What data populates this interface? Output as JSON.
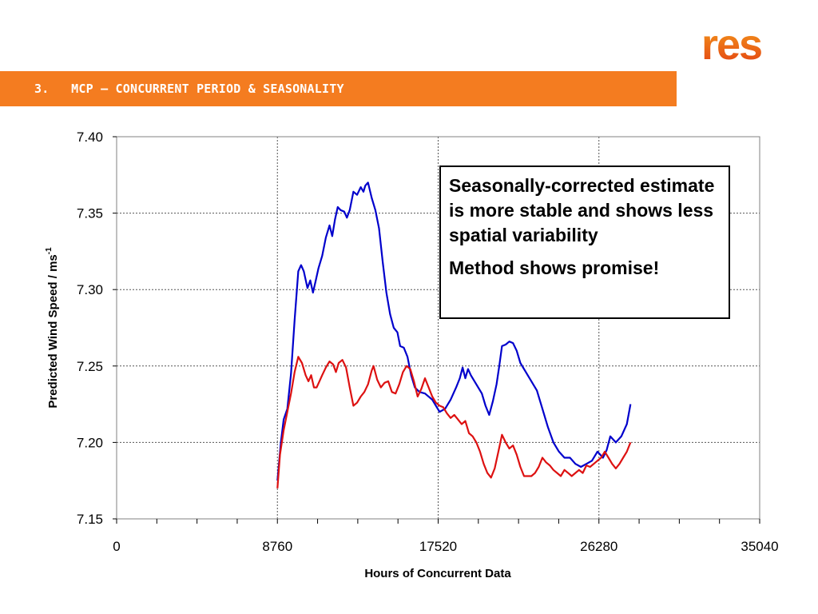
{
  "header": {
    "title": "3.   MCP – CONCURRENT PERIOD & SEASONALITY",
    "brand_color": "#f47c20"
  },
  "logo": {
    "text": "res"
  },
  "callout": {
    "line1": "Seasonally-corrected estimate is more stable and shows less spatial variability",
    "line2": "Method shows promise!"
  },
  "chart_data": {
    "type": "line",
    "xlabel": "Hours of Concurrent Data",
    "ylabel_main": "Predicted Wind Speed / ms",
    "ylabel_sup": "-1",
    "xlim": [
      0,
      35040
    ],
    "ylim": [
      7.15,
      7.4
    ],
    "x_ticks": [
      "0",
      "8760",
      "17520",
      "26280",
      "35040"
    ],
    "y_ticks": [
      "7.15",
      "7.20",
      "7.25",
      "7.30",
      "7.35",
      "7.40"
    ],
    "grid": "dotted",
    "series": [
      {
        "color": "#0000cc",
        "points": [
          [
            8760,
            7.175
          ],
          [
            8950,
            7.2
          ],
          [
            9100,
            7.215
          ],
          [
            9300,
            7.222
          ],
          [
            9500,
            7.245
          ],
          [
            9700,
            7.28
          ],
          [
            9900,
            7.312
          ],
          [
            10050,
            7.316
          ],
          [
            10200,
            7.312
          ],
          [
            10400,
            7.301
          ],
          [
            10550,
            7.306
          ],
          [
            10700,
            7.298
          ],
          [
            10850,
            7.306
          ],
          [
            11000,
            7.314
          ],
          [
            11200,
            7.322
          ],
          [
            11400,
            7.334
          ],
          [
            11600,
            7.342
          ],
          [
            11750,
            7.335
          ],
          [
            11900,
            7.346
          ],
          [
            12050,
            7.354
          ],
          [
            12200,
            7.352
          ],
          [
            12400,
            7.351
          ],
          [
            12550,
            7.347
          ],
          [
            12700,
            7.352
          ],
          [
            12900,
            7.364
          ],
          [
            13100,
            7.362
          ],
          [
            13300,
            7.367
          ],
          [
            13450,
            7.364
          ],
          [
            13550,
            7.368
          ],
          [
            13700,
            7.37
          ],
          [
            13900,
            7.36
          ],
          [
            14100,
            7.352
          ],
          [
            14300,
            7.34
          ],
          [
            14500,
            7.318
          ],
          [
            14700,
            7.298
          ],
          [
            14900,
            7.284
          ],
          [
            15100,
            7.275
          ],
          [
            15300,
            7.272
          ],
          [
            15450,
            7.263
          ],
          [
            15650,
            7.262
          ],
          [
            15850,
            7.256
          ],
          [
            16050,
            7.244
          ],
          [
            16250,
            7.236
          ],
          [
            16500,
            7.233
          ],
          [
            16800,
            7.232
          ],
          [
            17200,
            7.228
          ],
          [
            17400,
            7.224
          ],
          [
            17600,
            7.22
          ],
          [
            17900,
            7.222
          ],
          [
            18200,
            7.228
          ],
          [
            18500,
            7.236
          ],
          [
            18700,
            7.242
          ],
          [
            18850,
            7.249
          ],
          [
            19000,
            7.242
          ],
          [
            19150,
            7.248
          ],
          [
            19300,
            7.244
          ],
          [
            19500,
            7.24
          ],
          [
            19700,
            7.236
          ],
          [
            19900,
            7.232
          ],
          [
            20100,
            7.224
          ],
          [
            20300,
            7.218
          ],
          [
            20500,
            7.227
          ],
          [
            20700,
            7.238
          ],
          [
            20850,
            7.25
          ],
          [
            21000,
            7.263
          ],
          [
            21200,
            7.264
          ],
          [
            21400,
            7.266
          ],
          [
            21600,
            7.265
          ],
          [
            21800,
            7.26
          ],
          [
            22000,
            7.252
          ],
          [
            22300,
            7.246
          ],
          [
            22600,
            7.24
          ],
          [
            22900,
            7.234
          ],
          [
            23200,
            7.222
          ],
          [
            23500,
            7.21
          ],
          [
            23800,
            7.2
          ],
          [
            24100,
            7.194
          ],
          [
            24400,
            7.19
          ],
          [
            24700,
            7.19
          ],
          [
            25000,
            7.186
          ],
          [
            25300,
            7.184
          ],
          [
            25600,
            7.186
          ],
          [
            25900,
            7.188
          ],
          [
            26200,
            7.194
          ],
          [
            26500,
            7.19
          ],
          [
            26700,
            7.195
          ],
          [
            26900,
            7.204
          ],
          [
            27200,
            7.2
          ],
          [
            27500,
            7.204
          ],
          [
            27800,
            7.212
          ],
          [
            28000,
            7.225
          ]
        ]
      },
      {
        "color": "#dd1111",
        "points": [
          [
            8760,
            7.17
          ],
          [
            8900,
            7.192
          ],
          [
            9100,
            7.208
          ],
          [
            9300,
            7.22
          ],
          [
            9500,
            7.232
          ],
          [
            9700,
            7.246
          ],
          [
            9900,
            7.256
          ],
          [
            10100,
            7.252
          ],
          [
            10300,
            7.244
          ],
          [
            10450,
            7.24
          ],
          [
            10600,
            7.244
          ],
          [
            10750,
            7.236
          ],
          [
            10900,
            7.236
          ],
          [
            11050,
            7.24
          ],
          [
            11200,
            7.244
          ],
          [
            11400,
            7.249
          ],
          [
            11600,
            7.253
          ],
          [
            11800,
            7.251
          ],
          [
            11950,
            7.246
          ],
          [
            12100,
            7.252
          ],
          [
            12300,
            7.254
          ],
          [
            12500,
            7.249
          ],
          [
            12700,
            7.236
          ],
          [
            12900,
            7.224
          ],
          [
            13100,
            7.226
          ],
          [
            13300,
            7.23
          ],
          [
            13500,
            7.233
          ],
          [
            13700,
            7.238
          ],
          [
            13900,
            7.247
          ],
          [
            14000,
            7.25
          ],
          [
            14200,
            7.241
          ],
          [
            14400,
            7.236
          ],
          [
            14600,
            7.239
          ],
          [
            14800,
            7.24
          ],
          [
            15000,
            7.233
          ],
          [
            15200,
            7.232
          ],
          [
            15400,
            7.238
          ],
          [
            15600,
            7.246
          ],
          [
            15800,
            7.25
          ],
          [
            16000,
            7.248
          ],
          [
            16200,
            7.24
          ],
          [
            16400,
            7.23
          ],
          [
            16600,
            7.235
          ],
          [
            16800,
            7.242
          ],
          [
            17000,
            7.236
          ],
          [
            17200,
            7.23
          ],
          [
            17400,
            7.226
          ],
          [
            17600,
            7.224
          ],
          [
            17800,
            7.223
          ],
          [
            18000,
            7.219
          ],
          [
            18200,
            7.216
          ],
          [
            18400,
            7.218
          ],
          [
            18600,
            7.215
          ],
          [
            18800,
            7.212
          ],
          [
            19000,
            7.214
          ],
          [
            19200,
            7.206
          ],
          [
            19400,
            7.204
          ],
          [
            19600,
            7.2
          ],
          [
            19800,
            7.194
          ],
          [
            20000,
            7.186
          ],
          [
            20200,
            7.18
          ],
          [
            20400,
            7.177
          ],
          [
            20600,
            7.183
          ],
          [
            20800,
            7.194
          ],
          [
            21000,
            7.205
          ],
          [
            21200,
            7.2
          ],
          [
            21400,
            7.196
          ],
          [
            21600,
            7.198
          ],
          [
            21800,
            7.192
          ],
          [
            22000,
            7.184
          ],
          [
            22200,
            7.178
          ],
          [
            22400,
            7.178
          ],
          [
            22600,
            7.178
          ],
          [
            22800,
            7.18
          ],
          [
            23000,
            7.184
          ],
          [
            23200,
            7.19
          ],
          [
            23400,
            7.187
          ],
          [
            23600,
            7.185
          ],
          [
            23800,
            7.182
          ],
          [
            24000,
            7.18
          ],
          [
            24200,
            7.178
          ],
          [
            24400,
            7.182
          ],
          [
            24600,
            7.18
          ],
          [
            24800,
            7.178
          ],
          [
            25000,
            7.18
          ],
          [
            25200,
            7.182
          ],
          [
            25400,
            7.18
          ],
          [
            25600,
            7.185
          ],
          [
            25800,
            7.184
          ],
          [
            26000,
            7.186
          ],
          [
            26200,
            7.188
          ],
          [
            26400,
            7.19
          ],
          [
            26600,
            7.194
          ],
          [
            26800,
            7.19
          ],
          [
            27000,
            7.186
          ],
          [
            27200,
            7.183
          ],
          [
            27400,
            7.186
          ],
          [
            27600,
            7.19
          ],
          [
            27800,
            7.194
          ],
          [
            28000,
            7.2
          ]
        ]
      }
    ]
  }
}
